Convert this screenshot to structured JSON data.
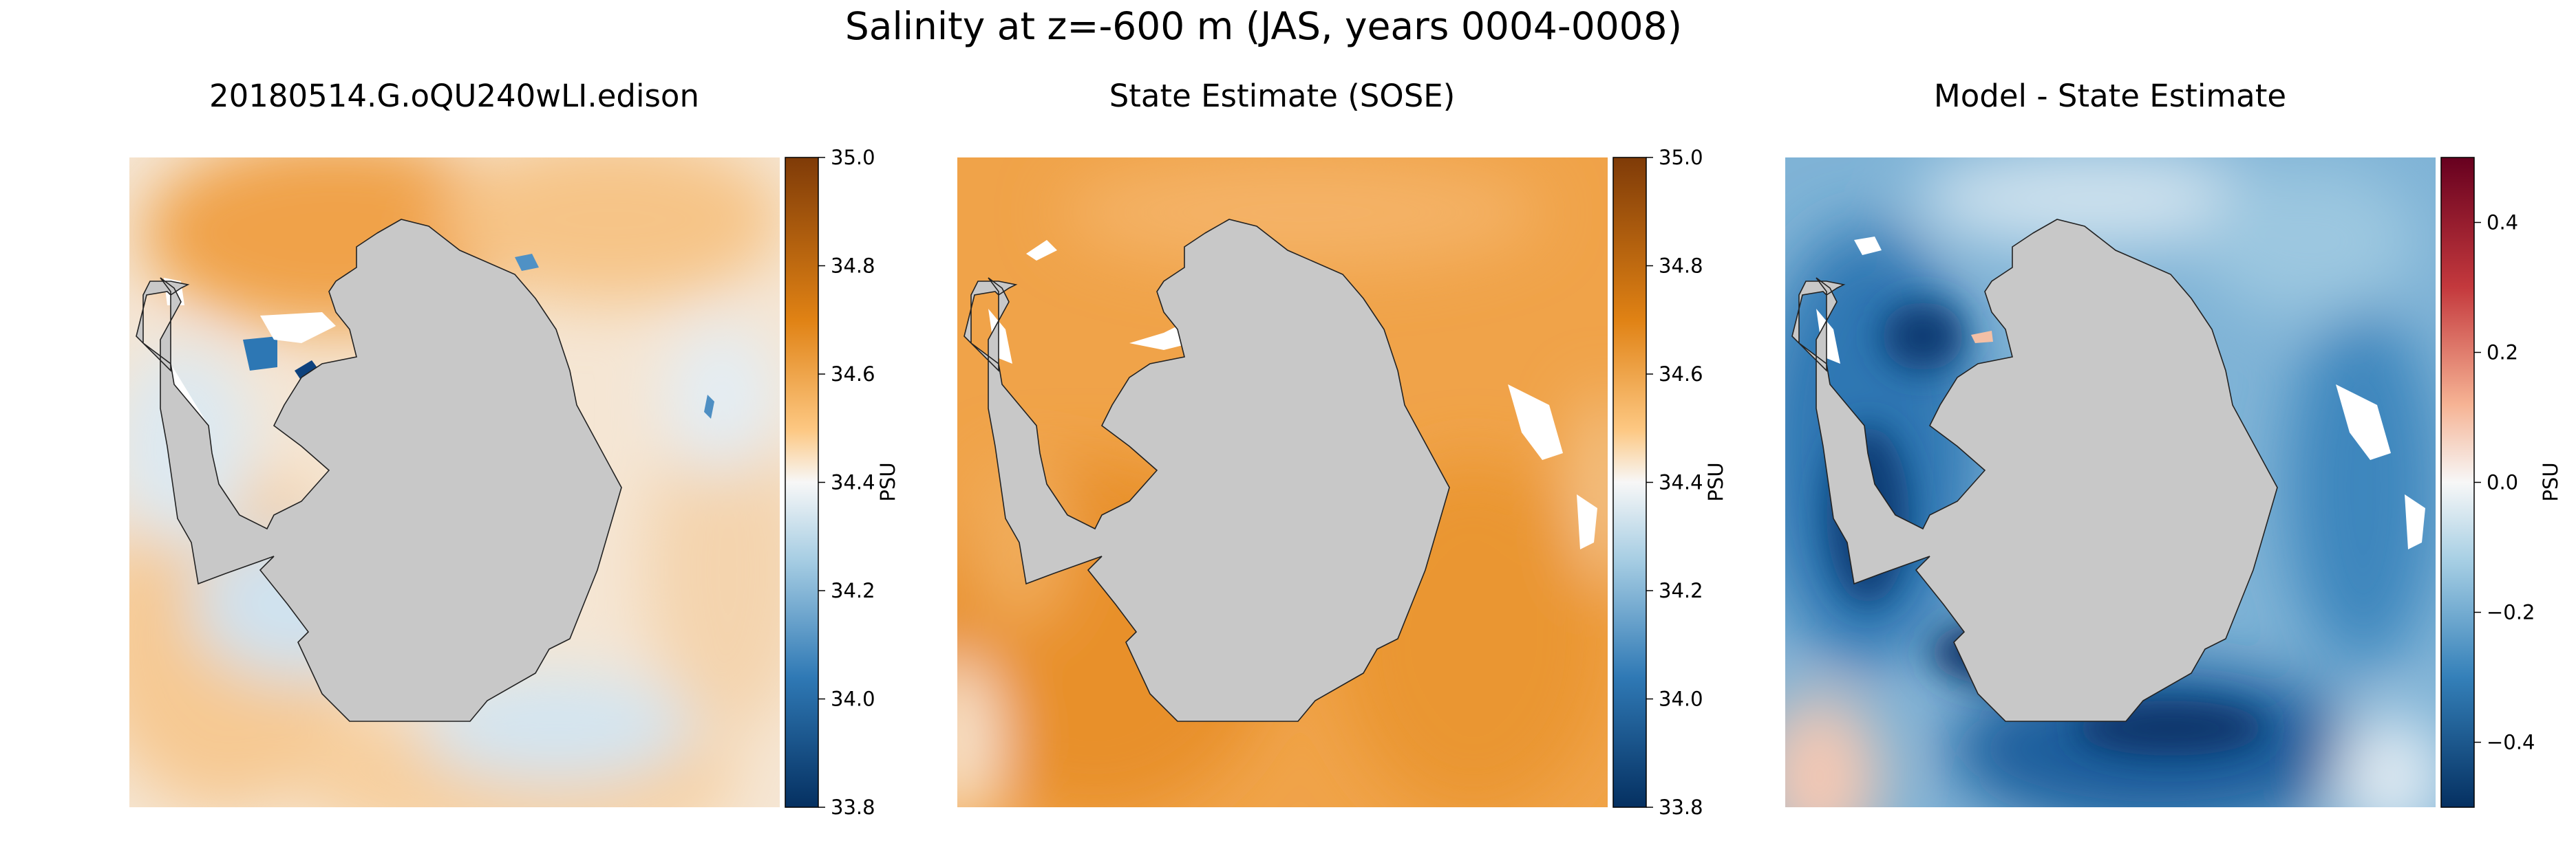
{
  "figure": {
    "suptitle": "Salinity at z=-600 m (JAS, years 0004-0008)"
  },
  "chart_data": [
    {
      "type": "heatmap",
      "title": "20180514.G.oQU240wLI.edison",
      "colormap": "diverging orange-white-blue",
      "colorbar": {
        "label": "PSU",
        "range": [
          33.8,
          35.0
        ],
        "ticks": [
          "35.0",
          "34.8",
          "34.6",
          "34.4",
          "34.2",
          "34.0",
          "33.8"
        ],
        "tick_values": [
          35.0,
          34.8,
          34.6,
          34.4,
          34.2,
          34.0,
          33.8
        ]
      },
      "land_color": "#c8c8c8"
    },
    {
      "type": "heatmap",
      "title": "State Estimate (SOSE)",
      "colormap": "diverging orange-white-blue",
      "colorbar": {
        "label": "PSU",
        "range": [
          33.8,
          35.0
        ],
        "ticks": [
          "35.0",
          "34.8",
          "34.6",
          "34.4",
          "34.2",
          "34.0",
          "33.8"
        ],
        "tick_values": [
          35.0,
          34.8,
          34.6,
          34.4,
          34.2,
          34.0,
          33.8
        ]
      },
      "land_color": "#c8c8c8"
    },
    {
      "type": "heatmap",
      "title": "Model - State Estimate",
      "colormap": "diverging red-white-blue",
      "colorbar": {
        "label": "PSU",
        "range": [
          -0.5,
          0.5
        ],
        "ticks": [
          "0.4",
          "0.2",
          "0.0",
          "−0.2",
          "−0.4"
        ],
        "tick_values": [
          0.4,
          0.2,
          0.0,
          -0.2,
          -0.4
        ]
      },
      "land_color": "#c8c8c8"
    }
  ],
  "colors": {
    "orange_dark": "#7f3b08",
    "orange_mid": "#e08214",
    "orange_light": "#fdb863",
    "neutral": "#f7f7f7",
    "blue_light": "#92c5de",
    "blue_mid": "#2166ac",
    "blue_dark": "#053061",
    "red_dark": "#67001f",
    "red_light": "#f4a582"
  }
}
